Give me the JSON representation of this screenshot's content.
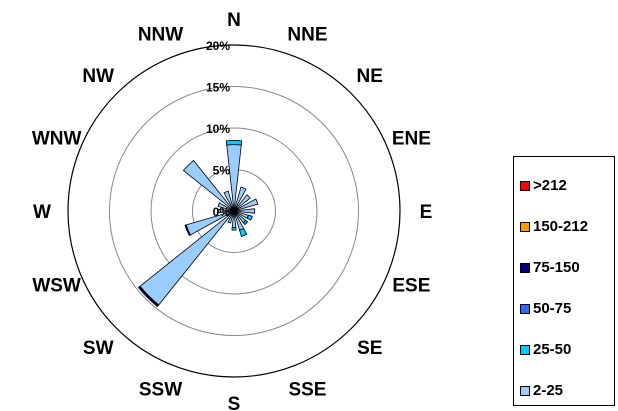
{
  "chart_data": {
    "type": "wind-rose",
    "title": "",
    "radial_max": 20,
    "ring_labels": [
      "0%",
      "5%",
      "10%",
      "15%",
      "20%"
    ],
    "ring_values": [
      0,
      5,
      10,
      15,
      20
    ],
    "directions": [
      "N",
      "NNE",
      "NE",
      "ENE",
      "E",
      "ESE",
      "SE",
      "SSE",
      "S",
      "SSW",
      "SW",
      "WSW",
      "W",
      "WNW",
      "NW",
      "NNW"
    ],
    "legend_position": "right",
    "series": [
      {
        "name": ">212",
        "color": "#ff0000",
        "values": [
          0,
          0,
          0,
          0,
          0,
          0,
          0,
          0,
          0,
          0,
          0,
          0,
          0,
          0,
          0,
          0
        ]
      },
      {
        "name": "150-212",
        "color": "#ff9900",
        "values": [
          0,
          0,
          0,
          0,
          0,
          0,
          0,
          0,
          0,
          0,
          0,
          0,
          0,
          0,
          0,
          0
        ]
      },
      {
        "name": "75-150",
        "color": "#000080",
        "values": [
          0,
          0,
          0,
          0,
          0,
          0,
          0,
          0,
          0,
          0,
          0.15,
          0.05,
          0,
          0,
          0,
          0
        ]
      },
      {
        "name": "50-75",
        "color": "#3366ff",
        "values": [
          0,
          0,
          0,
          0,
          0,
          0,
          0,
          0,
          0,
          0,
          0.1,
          0.1,
          0,
          0,
          0,
          0
        ]
      },
      {
        "name": "25-50",
        "color": "#00ccff",
        "values": [
          0.5,
          0,
          0,
          0,
          0,
          0.5,
          0.3,
          0.8,
          0.3,
          0,
          0,
          0,
          0,
          0,
          0,
          0
        ]
      },
      {
        "name": "2-25",
        "color": "#99ccff",
        "values": [
          8.0,
          3.0,
          2.5,
          3.0,
          2.5,
          1.8,
          1.8,
          2.4,
          2.0,
          1.5,
          14.5,
          6.0,
          2.0,
          2.0,
          7.8,
          2.5
        ]
      }
    ]
  }
}
